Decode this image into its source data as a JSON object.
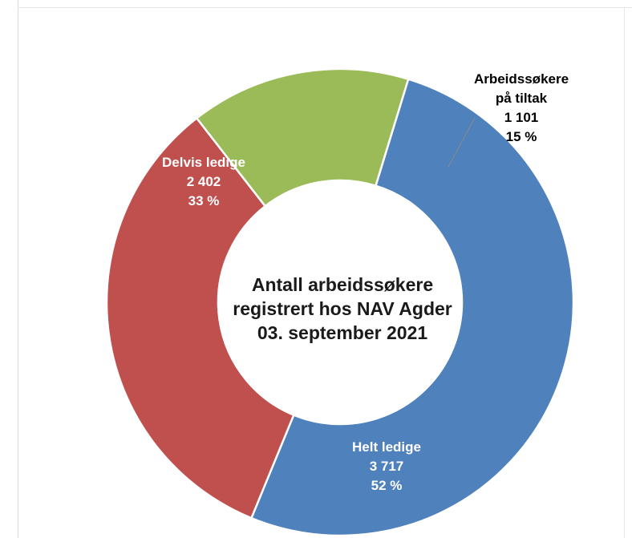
{
  "chart_data": {
    "type": "pie",
    "donut": true,
    "center_title": [
      "Antall arbeidssøkere",
      "registrert hos NAV Agder",
      "03. september 2021"
    ],
    "slices": [
      {
        "name": "Helt ledige",
        "value": 3717,
        "value_text": "3 717",
        "percent_text": "52 %",
        "color": "#4f81bd",
        "label_color": "#ffffff"
      },
      {
        "name": "Delvis ledige",
        "value": 2402,
        "value_text": "2 402",
        "percent_text": "33 %",
        "color": "#c0504d",
        "label_color": "#ffffff"
      },
      {
        "name": "Arbeidssøkere på tiltak",
        "name_lines": [
          "Arbeidssøkere",
          "på tiltak"
        ],
        "value": 1101,
        "value_text": "1 101",
        "percent_text": "15 %",
        "color": "#9bbb59",
        "label_color": "#000000"
      }
    ],
    "legend": "none"
  }
}
